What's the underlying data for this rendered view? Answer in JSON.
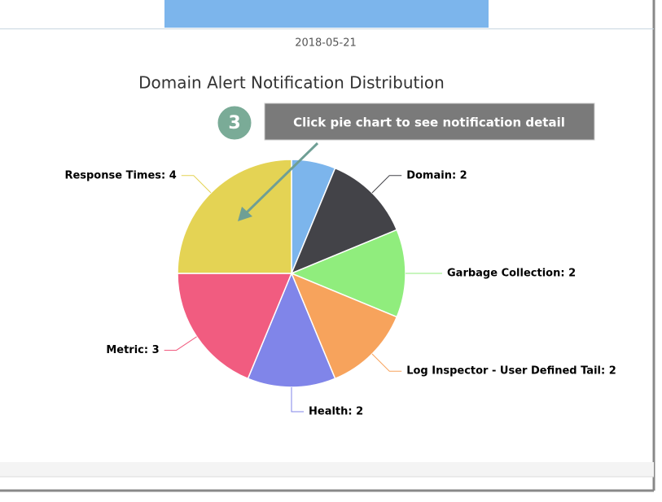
{
  "header": {
    "date": "2018-05-21"
  },
  "callout": {
    "step": "3",
    "text": "Click pie chart to see notification detail"
  },
  "chart_data": {
    "type": "pie",
    "title": "Domain Alert Notification Distribution",
    "values": [
      1,
      2,
      2,
      2,
      2,
      3,
      4
    ],
    "value_labels": [
      null,
      "Domain: 2",
      "Garbage Collection: 2",
      "Log Inspector - User Defined Tail: 2",
      "Health: 2",
      "Metric: 3",
      "Response Times: 4"
    ],
    "colors": [
      "#7cb5ec",
      "#434348",
      "#90ed7d",
      "#f7a35c",
      "#8085e9",
      "#f15c80",
      "#e4d354"
    ]
  }
}
